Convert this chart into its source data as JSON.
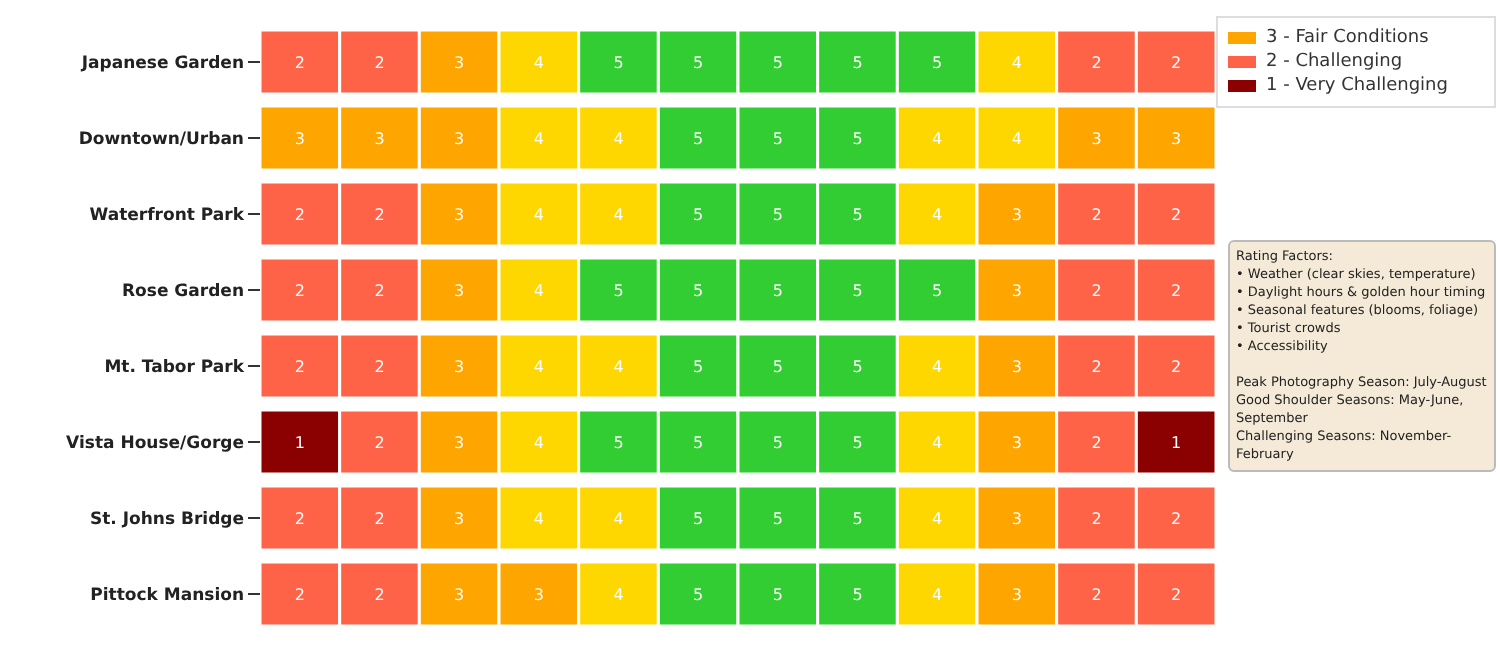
{
  "chart_data": {
    "type": "heatmap",
    "categories": [
      null,
      null,
      null,
      null,
      null,
      null,
      null,
      null,
      null,
      null,
      null,
      null
    ],
    "y_categories": [
      "Japanese Garden",
      "Downtown/Urban",
      "Waterfront Park",
      "Rose Garden",
      "Mt. Tabor Park",
      "Vista House/Gorge",
      "St. Johns Bridge",
      "Pittock Mansion"
    ],
    "cells": [
      [
        2,
        2,
        3,
        4,
        5,
        5,
        5,
        5,
        5,
        4,
        2,
        2
      ],
      [
        3,
        3,
        3,
        4,
        4,
        5,
        5,
        5,
        4,
        4,
        3,
        3
      ],
      [
        2,
        2,
        3,
        4,
        4,
        5,
        5,
        5,
        4,
        3,
        2,
        2
      ],
      [
        2,
        2,
        3,
        4,
        5,
        5,
        5,
        5,
        5,
        3,
        2,
        2
      ],
      [
        2,
        2,
        3,
        4,
        4,
        5,
        5,
        5,
        4,
        3,
        2,
        2
      ],
      [
        1,
        2,
        3,
        4,
        5,
        5,
        5,
        5,
        4,
        3,
        2,
        1
      ],
      [
        2,
        2,
        3,
        4,
        4,
        5,
        5,
        5,
        4,
        3,
        2,
        2
      ],
      [
        2,
        2,
        3,
        3,
        4,
        5,
        5,
        5,
        4,
        3,
        2,
        2
      ]
    ],
    "colors": [
      "#32cd32",
      "#ffd700",
      "#ffa500",
      "#ff6347",
      "#8b0000"
    ],
    "data_labels": true,
    "annotations": [
      "3 - Fair Conditions",
      "2 - Challenging",
      "1 - Very Challenging",
      "Rating Factors:\n• Weather (clear skies, temperature)\n• Daylight hours & golden hour timing\n• Seasonal features (blooms, foliage)\n• Tourist crowds\n• Accessibility\n\nPeak Photography Season: July-August\nGood Shoulder Seasons: May-June, September\nChallenging Seasons: November-February"
    ]
  }
}
